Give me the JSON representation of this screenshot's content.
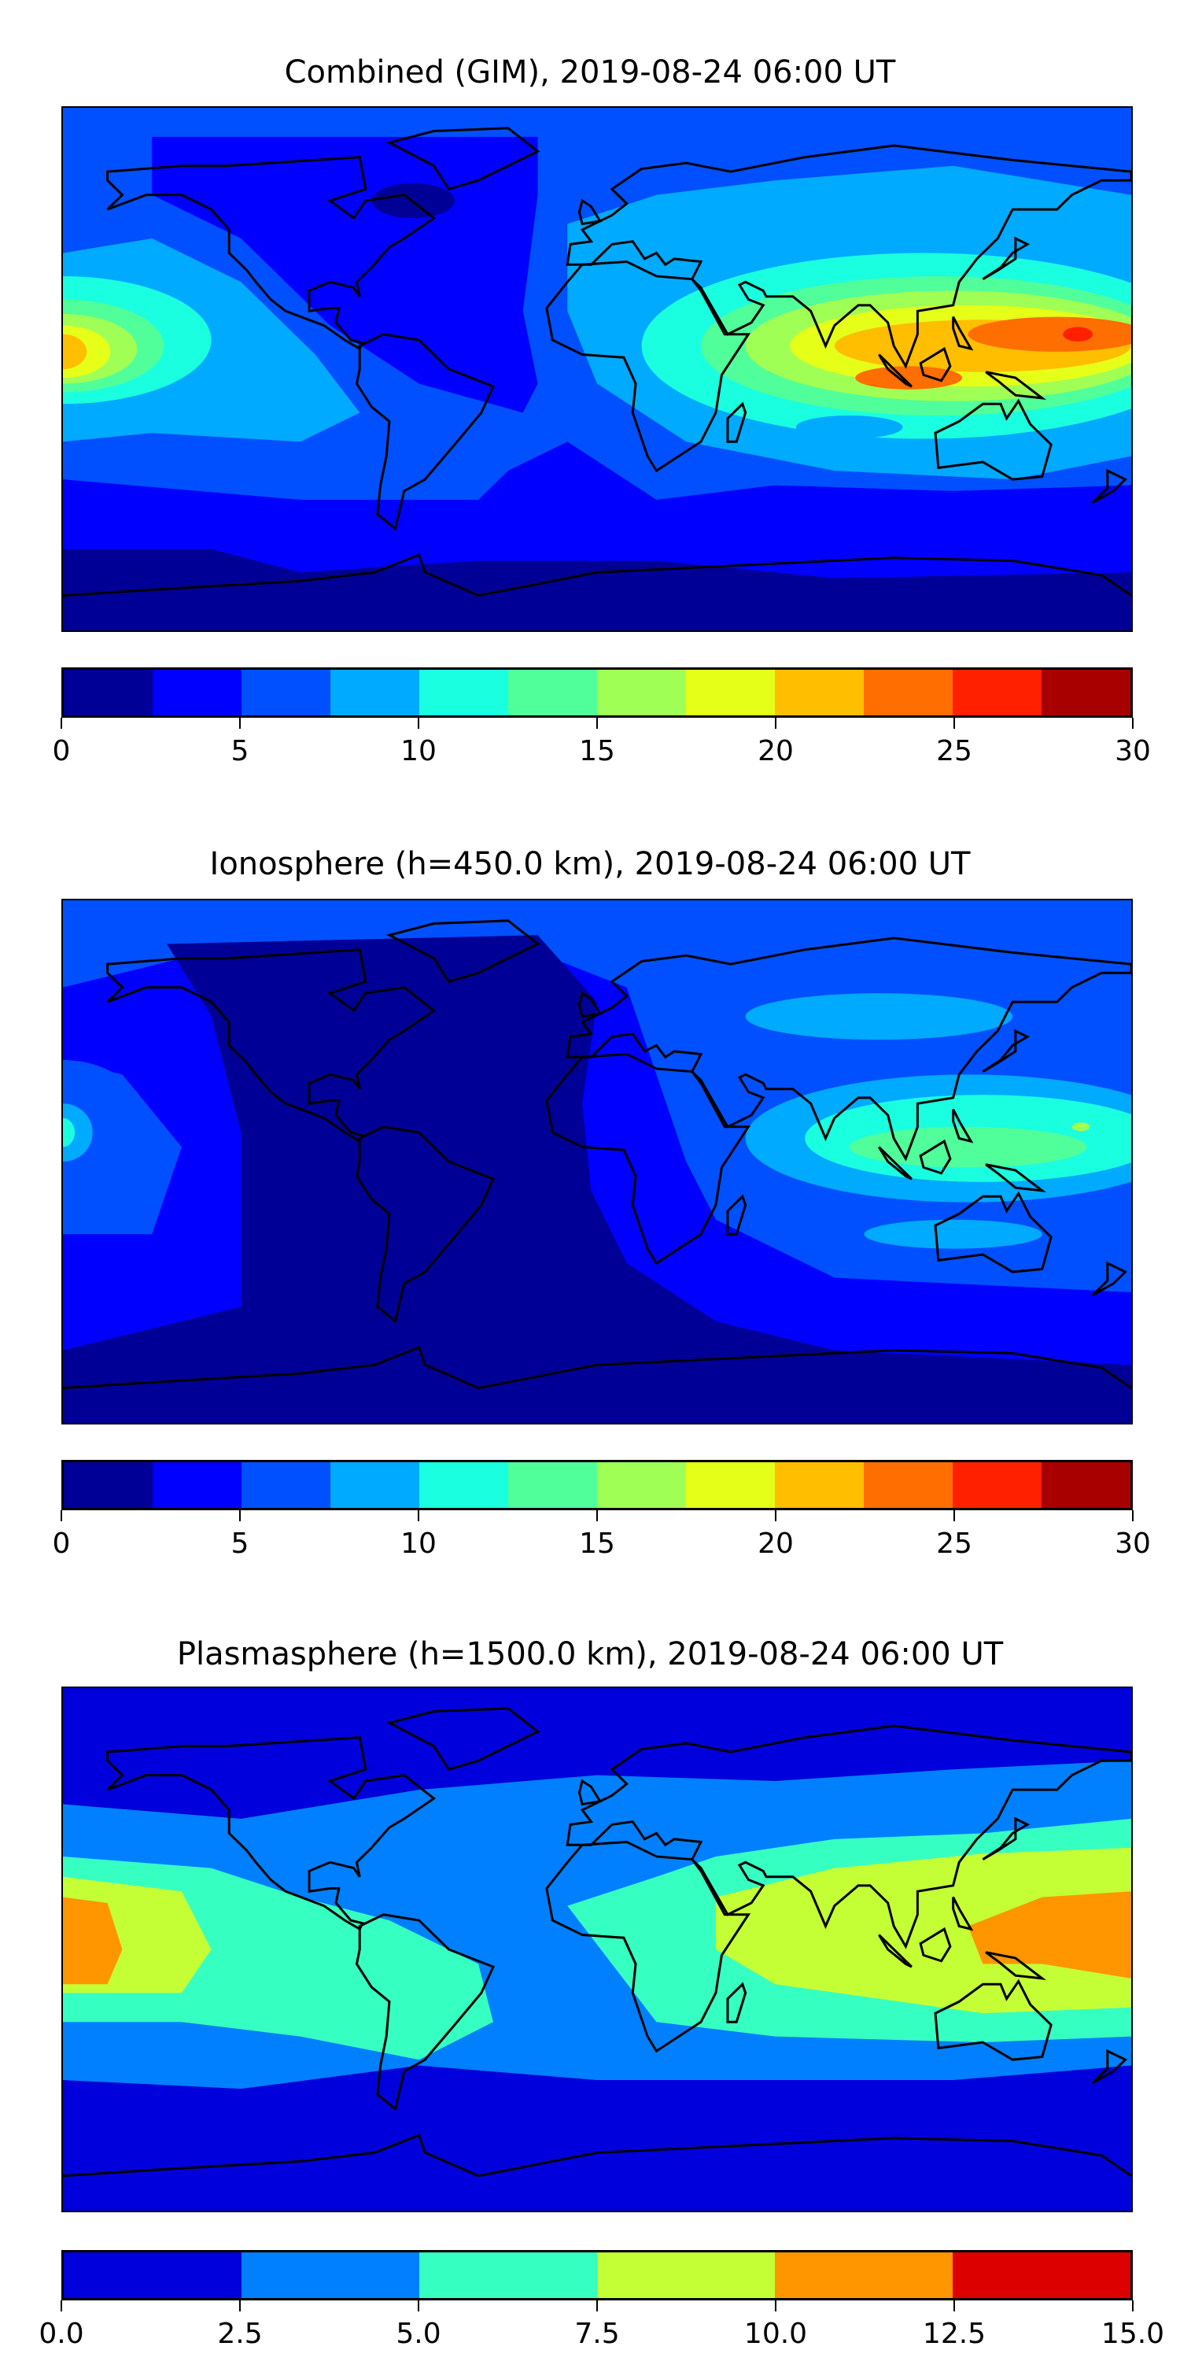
{
  "chart_data": [
    {
      "type": "heatmap",
      "title": "Combined (GIM), 2019-08-24 06:00 UT",
      "levels": [
        0,
        2.5,
        5,
        7.5,
        10,
        12.5,
        15,
        17.5,
        20,
        22.5,
        25,
        27.5,
        30
      ],
      "colors": [
        "#000096",
        "#0000ff",
        "#0050ff",
        "#00aaff",
        "#19ffe0",
        "#50ff9a",
        "#a0ff55",
        "#e5ff18",
        "#ffbe00",
        "#ff6e00",
        "#ff2000",
        "#a80000"
      ],
      "tick_labels": [
        "0",
        "5",
        "10",
        "15",
        "20",
        "25",
        "30"
      ],
      "background_level": 2,
      "regions": [
        {
          "level": 1,
          "poly": [
            [
              -150,
              80
            ],
            [
              -20,
              80
            ],
            [
              -20,
              60
            ],
            [
              -25,
              20
            ],
            [
              -20,
              -5
            ],
            [
              -25,
              -15
            ],
            [
              -60,
              -5
            ],
            [
              -90,
              15
            ],
            [
              -120,
              45
            ],
            [
              -150,
              60
            ]
          ]
        },
        {
          "level": 1,
          "poly": [
            [
              -180,
              -38
            ],
            [
              -100,
              -45
            ],
            [
              -40,
              -45
            ],
            [
              -30,
              -35
            ],
            [
              -10,
              -25
            ],
            [
              20,
              -45
            ],
            [
              60,
              -40
            ],
            [
              120,
              -42
            ],
            [
              180,
              -40
            ],
            [
              180,
              -90
            ],
            [
              -180,
              -90
            ]
          ]
        },
        {
          "level": 0,
          "ellipse": [
            -62,
            58,
            14,
            6
          ]
        },
        {
          "level": 0,
          "poly": [
            [
              -180,
              -62
            ],
            [
              -130,
              -62
            ],
            [
              -100,
              -70
            ],
            [
              -40,
              -66
            ],
            [
              20,
              -66
            ],
            [
              80,
              -72
            ],
            [
              180,
              -70
            ],
            [
              180,
              -90
            ],
            [
              -180,
              -90
            ]
          ]
        },
        {
          "level": 3,
          "poly": [
            [
              -180,
              40
            ],
            [
              -150,
              45
            ],
            [
              -120,
              30
            ],
            [
              -95,
              5
            ],
            [
              -80,
              -15
            ],
            [
              -100,
              -25
            ],
            [
              -150,
              -22
            ],
            [
              -180,
              -25
            ]
          ]
        },
        {
          "level": 3,
          "poly": [
            [
              -10,
              50
            ],
            [
              20,
              60
            ],
            [
              60,
              65
            ],
            [
              120,
              70
            ],
            [
              180,
              60
            ],
            [
              180,
              -30
            ],
            [
              140,
              -38
            ],
            [
              80,
              -35
            ],
            [
              30,
              -25
            ],
            [
              0,
              -5
            ],
            [
              -10,
              20
            ]
          ]
        },
        {
          "level": 4,
          "ellipse": [
            -180,
            10,
            50,
            22
          ]
        },
        {
          "level": 5,
          "ellipse": [
            -180,
            8,
            34,
            16
          ]
        },
        {
          "level": 6,
          "ellipse": [
            -180,
            7,
            25,
            12
          ]
        },
        {
          "level": 7,
          "ellipse": [
            -180,
            6,
            16,
            9
          ]
        },
        {
          "level": 8,
          "ellipse": [
            -180,
            6,
            8,
            6
          ]
        },
        {
          "level": 4,
          "ellipse": [
            110,
            8,
            95,
            32
          ]
        },
        {
          "level": 5,
          "ellipse": [
            115,
            8,
            80,
            24
          ]
        },
        {
          "level": 6,
          "ellipse": [
            120,
            8,
            70,
            19
          ]
        },
        {
          "level": 7,
          "ellipse": [
            125,
            8,
            60,
            14
          ]
        },
        {
          "level": 8,
          "ellipse": [
            130,
            8,
            50,
            9
          ]
        },
        {
          "level": 9,
          "ellipse": [
            155,
            12,
            30,
            6
          ]
        },
        {
          "level": 9,
          "ellipse": [
            105,
            -3,
            18,
            4
          ]
        },
        {
          "level": 10,
          "ellipse": [
            162,
            12,
            5,
            2.5
          ]
        },
        {
          "level": 3,
          "ellipse": [
            85,
            -20,
            18,
            4
          ]
        }
      ]
    },
    {
      "type": "heatmap",
      "title": "Ionosphere  (h=450.0 km), 2019-08-24 06:00 UT",
      "levels": [
        0,
        2.5,
        5,
        7.5,
        10,
        12.5,
        15,
        17.5,
        20,
        22.5,
        25,
        27.5,
        30
      ],
      "colors": [
        "#000096",
        "#0000ff",
        "#0050ff",
        "#00aaff",
        "#19ffe0",
        "#50ff9a",
        "#a0ff55",
        "#e5ff18",
        "#ffbe00",
        "#ff6e00",
        "#ff2000",
        "#a80000"
      ],
      "tick_labels": [
        "0",
        "5",
        "10",
        "15",
        "20",
        "25",
        "30"
      ],
      "background_level": 2,
      "regions": [
        {
          "level": 1,
          "poly": [
            [
              -180,
              60
            ],
            [
              -140,
              70
            ],
            [
              -20,
              72
            ],
            [
              10,
              60
            ],
            [
              20,
              30
            ],
            [
              30,
              0
            ],
            [
              40,
              -20
            ],
            [
              80,
              -40
            ],
            [
              180,
              -45
            ],
            [
              180,
              -90
            ],
            [
              -180,
              -90
            ],
            [
              -180,
              -25
            ],
            [
              -150,
              -25
            ],
            [
              -140,
              5
            ],
            [
              -160,
              30
            ],
            [
              -180,
              35
            ]
          ]
        },
        {
          "level": 0,
          "poly": [
            [
              -145,
              75
            ],
            [
              -20,
              78
            ],
            [
              0,
              55
            ],
            [
              -5,
              20
            ],
            [
              -2,
              -10
            ],
            [
              10,
              -35
            ],
            [
              40,
              -55
            ],
            [
              80,
              -65
            ],
            [
              180,
              -70
            ],
            [
              180,
              -90
            ],
            [
              -180,
              -90
            ],
            [
              -180,
              -65
            ],
            [
              -120,
              -50
            ],
            [
              -120,
              10
            ],
            [
              -130,
              50
            ]
          ]
        },
        {
          "level": 2,
          "ellipse": [
            -180,
            10,
            30,
            25
          ]
        },
        {
          "level": 3,
          "ellipse": [
            -180,
            10,
            10,
            10
          ]
        },
        {
          "level": 4,
          "ellipse": [
            -180,
            10,
            4,
            5
          ]
        },
        {
          "level": 3,
          "ellipse": [
            125,
            8,
            75,
            22
          ]
        },
        {
          "level": 3,
          "ellipse": [
            95,
            50,
            45,
            8
          ]
        },
        {
          "level": 3,
          "ellipse": [
            120,
            -25,
            30,
            5
          ]
        },
        {
          "level": 4,
          "ellipse": [
            130,
            8,
            60,
            15
          ]
        },
        {
          "level": 5,
          "ellipse": [
            125,
            5,
            40,
            7
          ]
        },
        {
          "level": 6,
          "ellipse": [
            163,
            12,
            3,
            1.5
          ]
        }
      ]
    },
    {
      "type": "heatmap",
      "title": "Plasmasphere (h=1500.0 km), 2019-08-24 06:00 UT",
      "levels": [
        0,
        2.5,
        5,
        7.5,
        10,
        12.5,
        15
      ],
      "colors": [
        "#0000dc",
        "#0080ff",
        "#36ffc2",
        "#c4ff35",
        "#ff9600",
        "#dc0000"
      ],
      "tick_labels": [
        "0.0",
        "2.5",
        "5.0",
        "7.5",
        "10.0",
        "12.5",
        "15.0"
      ],
      "background_level": 0,
      "regions": [
        {
          "level": 1,
          "poly": [
            [
              -180,
              50
            ],
            [
              -120,
              45
            ],
            [
              -60,
              55
            ],
            [
              0,
              60
            ],
            [
              60,
              58
            ],
            [
              120,
              62
            ],
            [
              180,
              65
            ],
            [
              180,
              -40
            ],
            [
              120,
              -45
            ],
            [
              60,
              -45
            ],
            [
              0,
              -45
            ],
            [
              -60,
              -40
            ],
            [
              -120,
              -48
            ],
            [
              -180,
              -45
            ]
          ]
        },
        {
          "level": 2,
          "poly": [
            [
              -180,
              32
            ],
            [
              -130,
              28
            ],
            [
              -100,
              18
            ],
            [
              -70,
              10
            ],
            [
              -40,
              -5
            ],
            [
              -35,
              -25
            ],
            [
              -60,
              -38
            ],
            [
              -100,
              -30
            ],
            [
              -140,
              -25
            ],
            [
              -180,
              -25
            ]
          ]
        },
        {
          "level": 2,
          "poly": [
            [
              -10,
              15
            ],
            [
              20,
              25
            ],
            [
              40,
              32
            ],
            [
              80,
              38
            ],
            [
              130,
              40
            ],
            [
              180,
              45
            ],
            [
              180,
              -30
            ],
            [
              130,
              -32
            ],
            [
              60,
              -30
            ],
            [
              20,
              -25
            ],
            [
              5,
              -5
            ]
          ]
        },
        {
          "level": 3,
          "poly": [
            [
              -180,
              25
            ],
            [
              -140,
              20
            ],
            [
              -130,
              0
            ],
            [
              -140,
              -15
            ],
            [
              -180,
              -15
            ]
          ]
        },
        {
          "level": 3,
          "poly": [
            [
              40,
              18
            ],
            [
              80,
              28
            ],
            [
              130,
              33
            ],
            [
              180,
              35
            ],
            [
              180,
              -20
            ],
            [
              130,
              -22
            ],
            [
              60,
              -12
            ],
            [
              40,
              0
            ]
          ]
        },
        {
          "level": 4,
          "poly": [
            [
              -180,
              18
            ],
            [
              -165,
              16
            ],
            [
              -160,
              0
            ],
            [
              -165,
              -12
            ],
            [
              -180,
              -12
            ]
          ]
        },
        {
          "level": 4,
          "poly": [
            [
              125,
              8
            ],
            [
              150,
              18
            ],
            [
              180,
              20
            ],
            [
              180,
              -10
            ],
            [
              150,
              -5
            ],
            [
              130,
              -5
            ]
          ]
        }
      ]
    }
  ]
}
